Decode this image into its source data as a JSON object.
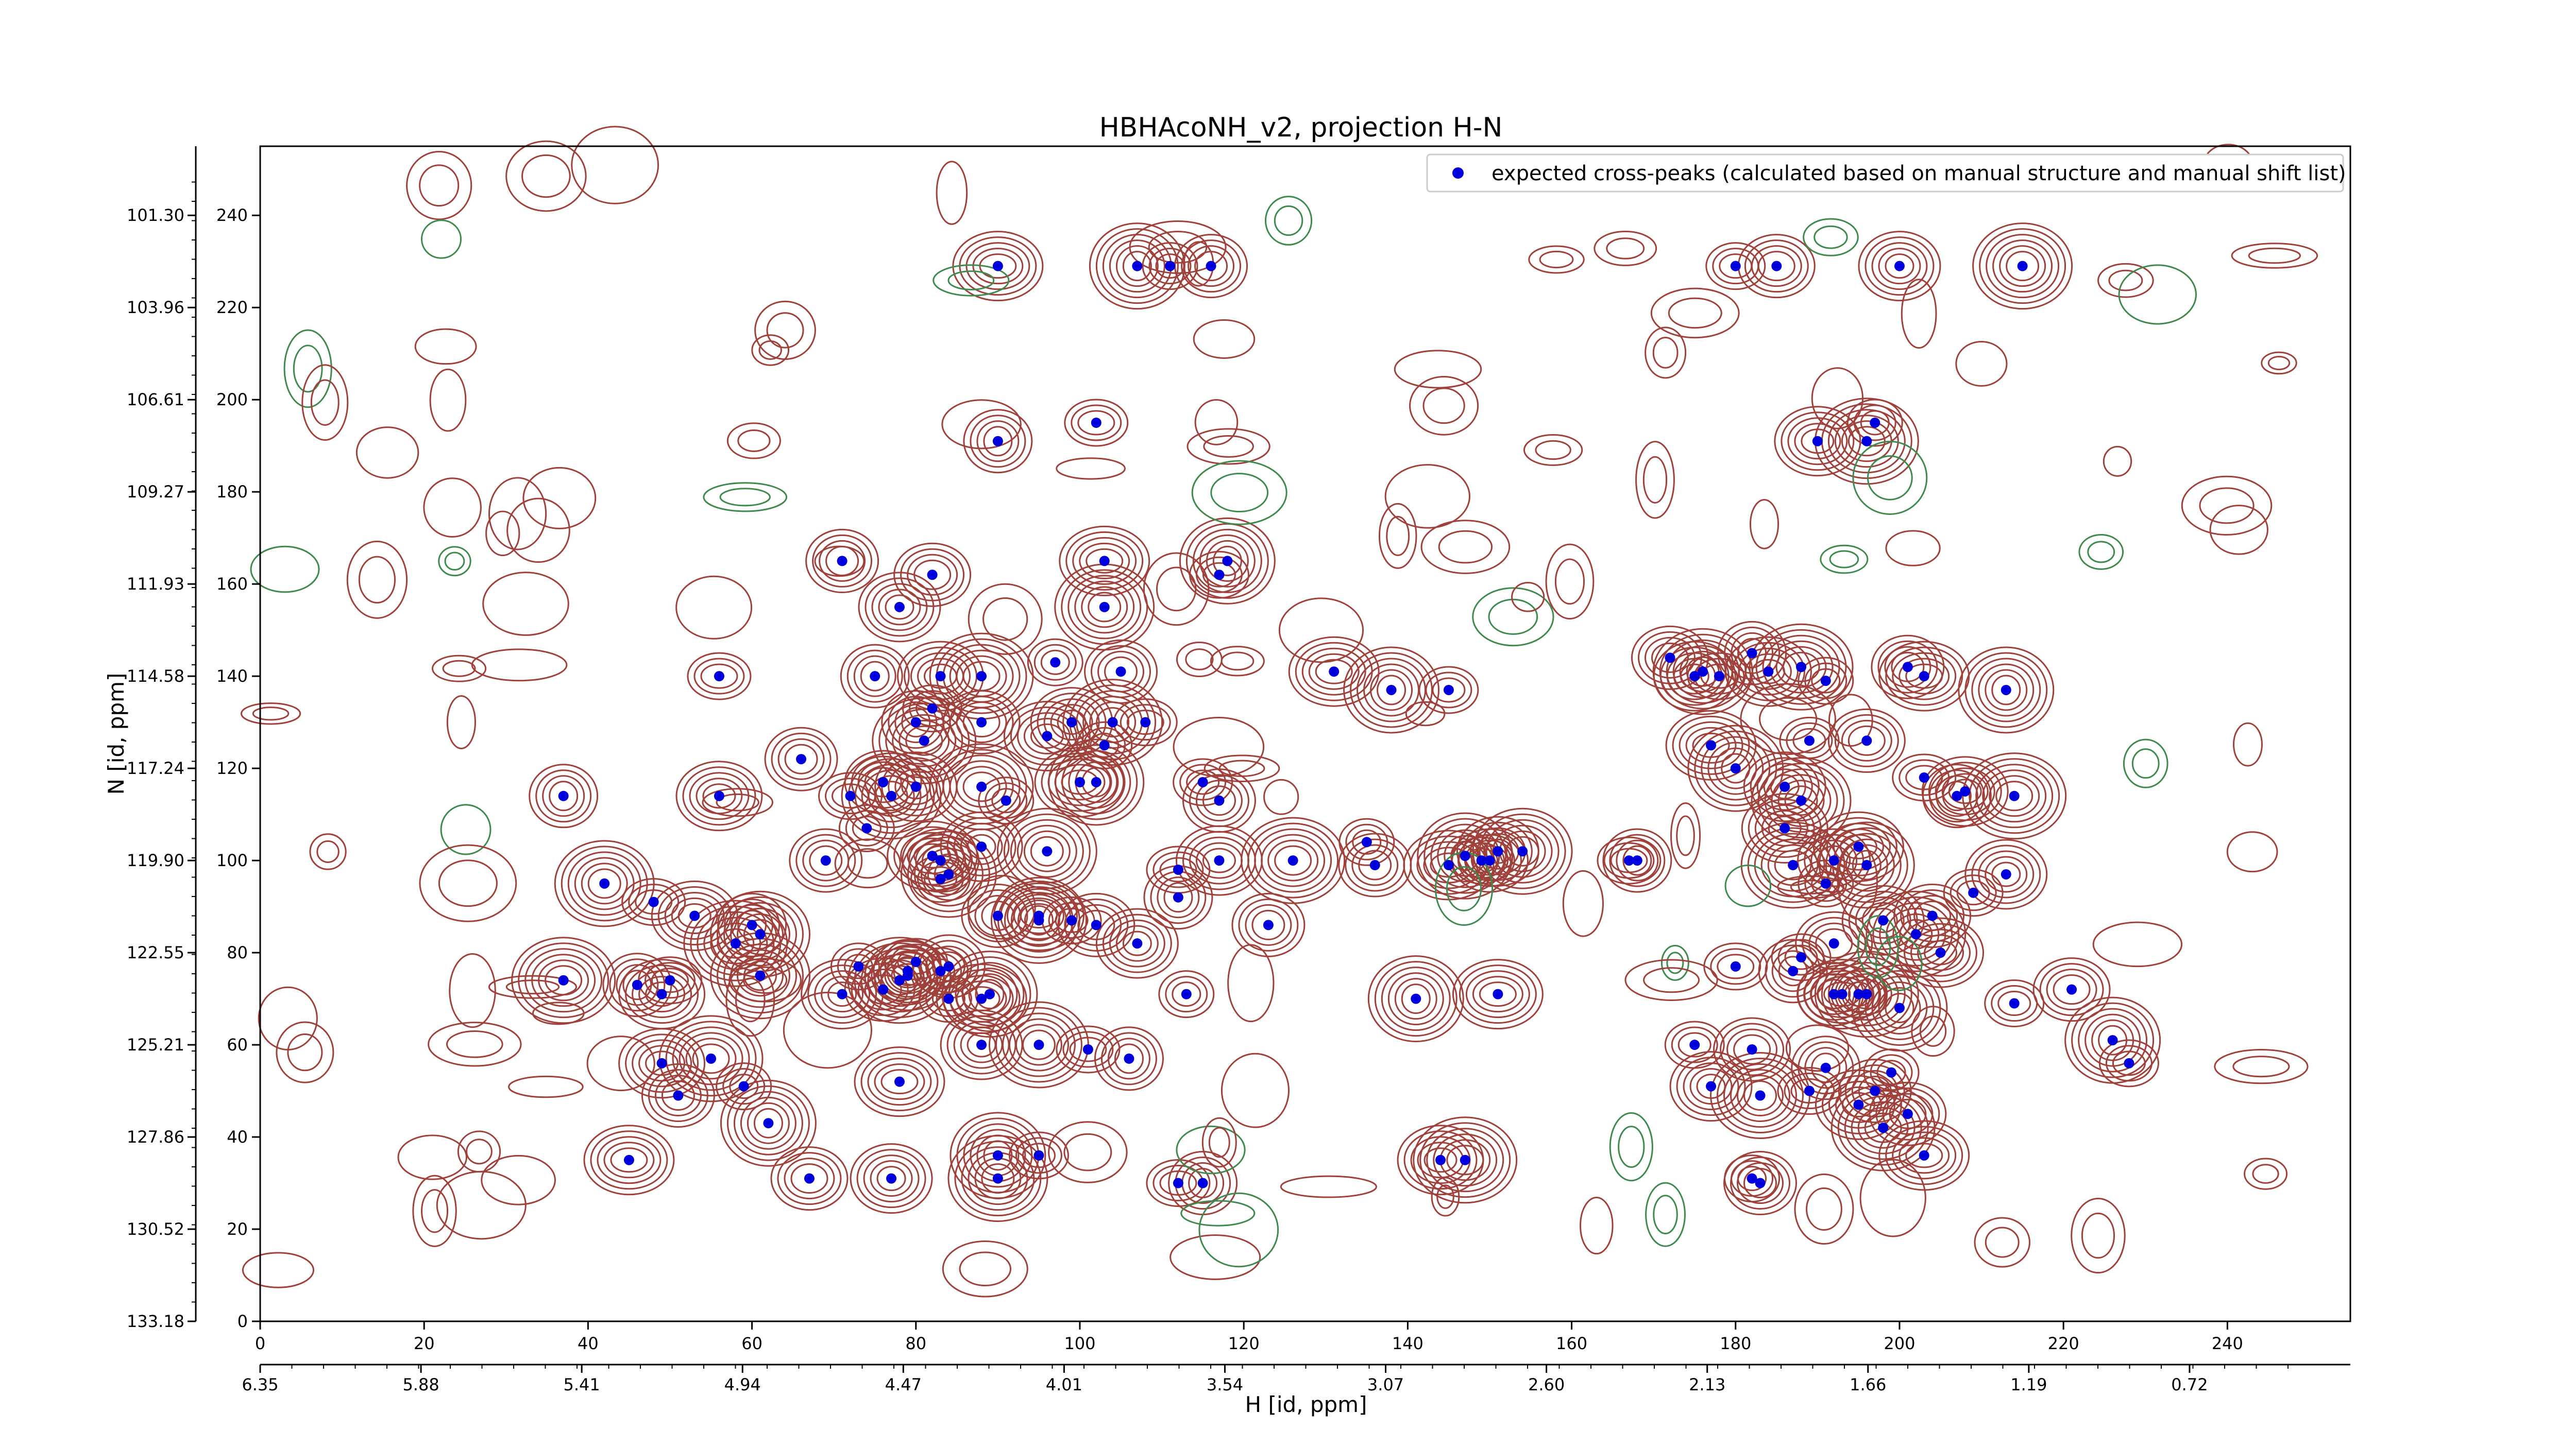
{
  "chart_data": {
    "type": "scatter",
    "title": "HBHAcoNH_v2, projection H-N",
    "xlabel": "H [id, ppm]",
    "ylabel": "N [id, ppm]",
    "xlim": [
      0,
      255
    ],
    "ylim": [
      0,
      255
    ],
    "x_ticks": [
      0,
      20,
      40,
      60,
      80,
      100,
      120,
      140,
      160,
      180,
      200,
      220,
      240
    ],
    "y_ticks": [
      0,
      20,
      40,
      60,
      80,
      100,
      120,
      140,
      160,
      180,
      200,
      220,
      240
    ],
    "x_ppm_ticks": [
      "6.35",
      "5.88",
      "5.41",
      "4.94",
      "4.47",
      "4.01",
      "3.54",
      "3.07",
      "2.60",
      "2.13",
      "1.66",
      "1.19",
      "0.72"
    ],
    "y_ppm_ticks": [
      "133.18",
      "130.52",
      "127.86",
      "125.21",
      "122.55",
      "119.90",
      "117.24",
      "114.58",
      "111.93",
      "109.27",
      "106.61",
      "103.96",
      "101.30"
    ],
    "legend": {
      "label": "expected cross-peaks (calculated based on manual structure and manual shift list)",
      "placement": "top-right"
    },
    "colors": {
      "peak": "#0000dd",
      "contour_positive": "#a0403a",
      "contour_negative": "#3e8a4e",
      "axis": "#000000"
    },
    "series": [
      {
        "name": "expected cross-peaks (calculated based on manual structure and manual shift list)",
        "points": [
          [
            111,
            229
          ],
          [
            116,
            229
          ],
          [
            90,
            229
          ],
          [
            107,
            229
          ],
          [
            180,
            229
          ],
          [
            185,
            229
          ],
          [
            200,
            229
          ],
          [
            215,
            229
          ],
          [
            102,
            195
          ],
          [
            90,
            191
          ],
          [
            190,
            191
          ],
          [
            196,
            191
          ],
          [
            197,
            195
          ],
          [
            71,
            165
          ],
          [
            103,
            165
          ],
          [
            118,
            165
          ],
          [
            117,
            162
          ],
          [
            82,
            162
          ],
          [
            78,
            155
          ],
          [
            103,
            155
          ],
          [
            56,
            140
          ],
          [
            75,
            140
          ],
          [
            83,
            140
          ],
          [
            88,
            140
          ],
          [
            97,
            143
          ],
          [
            105,
            141
          ],
          [
            131,
            141
          ],
          [
            138,
            137
          ],
          [
            145,
            137
          ],
          [
            172,
            144
          ],
          [
            175,
            140
          ],
          [
            176,
            141
          ],
          [
            178,
            140
          ],
          [
            182,
            145
          ],
          [
            184,
            141
          ],
          [
            188,
            142
          ],
          [
            191,
            139
          ],
          [
            201,
            142
          ],
          [
            203,
            140
          ],
          [
            213,
            137
          ],
          [
            82,
            133
          ],
          [
            88,
            130
          ],
          [
            99,
            130
          ],
          [
            104,
            130
          ],
          [
            108,
            130
          ],
          [
            80,
            130
          ],
          [
            96,
            127
          ],
          [
            81,
            126
          ],
          [
            103,
            125
          ],
          [
            66,
            122
          ],
          [
            100,
            117
          ],
          [
            102,
            117
          ],
          [
            115,
            117
          ],
          [
            76,
            117
          ],
          [
            80,
            116
          ],
          [
            77,
            114
          ],
          [
            72,
            114
          ],
          [
            37,
            114
          ],
          [
            56,
            114
          ],
          [
            88,
            116
          ],
          [
            91,
            113
          ],
          [
            117,
            113
          ],
          [
            177,
            125
          ],
          [
            180,
            120
          ],
          [
            189,
            126
          ],
          [
            196,
            126
          ],
          [
            186,
            116
          ],
          [
            188,
            113
          ],
          [
            203,
            118
          ],
          [
            207,
            114
          ],
          [
            208,
            115
          ],
          [
            214,
            114
          ],
          [
            74,
            107
          ],
          [
            69,
            100
          ],
          [
            82,
            101
          ],
          [
            84,
            97
          ],
          [
            83,
            96
          ],
          [
            83,
            100
          ],
          [
            88,
            103
          ],
          [
            96,
            102
          ],
          [
            112,
            98
          ],
          [
            112,
            92
          ],
          [
            117,
            100
          ],
          [
            126,
            100
          ],
          [
            135,
            104
          ],
          [
            136,
            99
          ],
          [
            145,
            99
          ],
          [
            147,
            101
          ],
          [
            149,
            100
          ],
          [
            150,
            100
          ],
          [
            151,
            102
          ],
          [
            154,
            102
          ],
          [
            167,
            100
          ],
          [
            168,
            100
          ],
          [
            186,
            107
          ],
          [
            187,
            99
          ],
          [
            191,
            95
          ],
          [
            192,
            100
          ],
          [
            195,
            103
          ],
          [
            196,
            99
          ],
          [
            209,
            93
          ],
          [
            204,
            88
          ],
          [
            213,
            97
          ],
          [
            42,
            95
          ],
          [
            48,
            91
          ],
          [
            60,
            86
          ],
          [
            53,
            88
          ],
          [
            58,
            82
          ],
          [
            73,
            77
          ],
          [
            90,
            88
          ],
          [
            95,
            88
          ],
          [
            95,
            87
          ],
          [
            99,
            87
          ],
          [
            102,
            86
          ],
          [
            107,
            82
          ],
          [
            61,
            84
          ],
          [
            80,
            78
          ],
          [
            79,
            76
          ],
          [
            79,
            75
          ],
          [
            78,
            74
          ],
          [
            83,
            76
          ],
          [
            84,
            77
          ],
          [
            88,
            70
          ],
          [
            89,
            71
          ],
          [
            84,
            70
          ],
          [
            76,
            72
          ],
          [
            71,
            71
          ],
          [
            61,
            75
          ],
          [
            50,
            74
          ],
          [
            46,
            73
          ],
          [
            49,
            71
          ],
          [
            37,
            74
          ],
          [
            113,
            71
          ],
          [
            123,
            86
          ],
          [
            151,
            71
          ],
          [
            141,
            70
          ],
          [
            188,
            79
          ],
          [
            192,
            82
          ],
          [
            198,
            87
          ],
          [
            202,
            84
          ],
          [
            180,
            77
          ],
          [
            187,
            76
          ],
          [
            205,
            80
          ],
          [
            196,
            71
          ],
          [
            195,
            71
          ],
          [
            192,
            71
          ],
          [
            193,
            71
          ],
          [
            200,
            68
          ],
          [
            214,
            69
          ],
          [
            221,
            72
          ],
          [
            88,
            60
          ],
          [
            95,
            60
          ],
          [
            101,
            59
          ],
          [
            106,
            57
          ],
          [
            49,
            56
          ],
          [
            55,
            57
          ],
          [
            59,
            51
          ],
          [
            51,
            49
          ],
          [
            78,
            52
          ],
          [
            62,
            43
          ],
          [
            175,
            60
          ],
          [
            182,
            59
          ],
          [
            177,
            51
          ],
          [
            183,
            49
          ],
          [
            189,
            50
          ],
          [
            191,
            55
          ],
          [
            195,
            47
          ],
          [
            198,
            42
          ],
          [
            199,
            54
          ],
          [
            197,
            50
          ],
          [
            45,
            35
          ],
          [
            90,
            36
          ],
          [
            95,
            36
          ],
          [
            67,
            31
          ],
          [
            77,
            31
          ],
          [
            90,
            31
          ],
          [
            112,
            30
          ],
          [
            115,
            30
          ],
          [
            144,
            35
          ],
          [
            147,
            35
          ],
          [
            182,
            31
          ],
          [
            183,
            30
          ],
          [
            203,
            36
          ],
          [
            226,
            61
          ],
          [
            228,
            56
          ],
          [
            201,
            45
          ]
        ]
      }
    ]
  }
}
